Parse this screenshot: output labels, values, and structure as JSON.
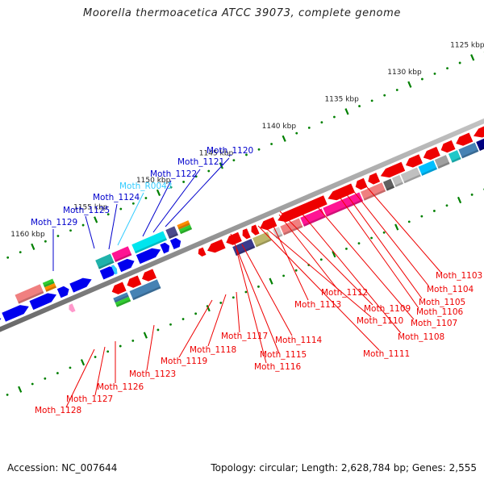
{
  "title": "Moorella thermoacetica ATCC 39073, complete genome",
  "footer": {
    "accession": "Accession: NC_007644",
    "summary": "Topology: circular; Length: 2,628,784 bp; Genes: 2,555"
  },
  "colors": {
    "forward_label": "#0000cc",
    "rna_label": "#33ccff",
    "reverse_label": "#ee0000",
    "tick": "#008000",
    "backbone": "#8a8a8a"
  },
  "ticks": {
    "upper_labels": [
      "1125 kbp",
      "1130 kbp",
      "1135 kbp",
      "1140 kbp",
      "1145 kbp",
      "1150 kbp",
      "1155 kbp",
      "1160 kbp"
    ],
    "upper_kbp": [
      1125,
      1130,
      1135,
      1140,
      1145,
      1150,
      1155,
      1160
    ]
  },
  "forward_labels": [
    {
      "name": "Moth_1120",
      "kbp": 1147.6
    },
    {
      "name": "Moth_1121",
      "kbp": 1148.4
    },
    {
      "name": "Moth_1122",
      "kbp": 1149.2
    },
    {
      "name": "Moth_R0043",
      "kbp": 1153.0
    },
    {
      "name": "Moth_1124",
      "kbp": 1153.8
    },
    {
      "name": "Moth_1125",
      "kbp": 1155.0
    },
    {
      "name": "Moth_1129",
      "kbp": 1159.0
    }
  ],
  "reverse_labels": [
    {
      "name": "Moth_1103",
      "kbp": 1126.2
    },
    {
      "name": "Moth_1104",
      "kbp": 1127.0
    },
    {
      "name": "Moth_1105",
      "kbp": 1127.6
    },
    {
      "name": "Moth_1106",
      "kbp": 1128.2
    },
    {
      "name": "Moth_1107",
      "kbp": 1129.6
    },
    {
      "name": "Moth_1108",
      "kbp": 1130.6
    },
    {
      "name": "Moth_1109",
      "kbp": 1132.4
    },
    {
      "name": "Moth_1110",
      "kbp": 1133.2
    },
    {
      "name": "Moth_1111",
      "kbp": 1133.8
    },
    {
      "name": "Moth_1112",
      "kbp": 1134.8
    },
    {
      "name": "Moth_1113",
      "kbp": 1136.6
    },
    {
      "name": "Moth_1114",
      "kbp": 1139.4
    },
    {
      "name": "Moth_1115",
      "kbp": 1141.2
    },
    {
      "name": "Moth_1116",
      "kbp": 1141.8
    },
    {
      "name": "Moth_1117",
      "kbp": 1142.8
    },
    {
      "name": "Moth_1118",
      "kbp": 1144.4
    },
    {
      "name": "Moth_1119",
      "kbp": 1145.6
    },
    {
      "name": "Moth_1123",
      "kbp": 1151.6
    },
    {
      "name": "Moth_1126",
      "kbp": 1155.6
    },
    {
      "name": "Moth_1127",
      "kbp": 1156.6
    },
    {
      "name": "Moth_1128",
      "kbp": 1157.4
    }
  ]
}
